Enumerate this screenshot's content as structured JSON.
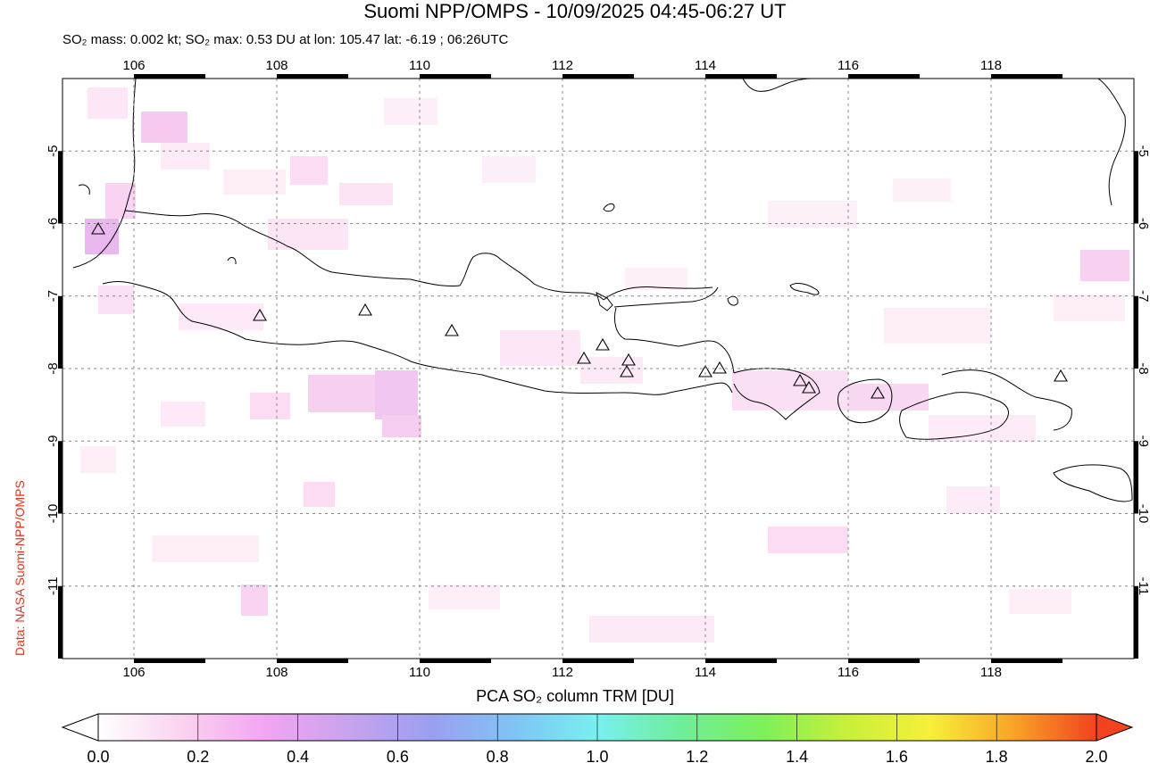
{
  "title": "Suomi NPP/OMPS - 10/09/2025 04:45-06:27 UT",
  "subtitle": "SO₂ mass: 0.002 kt; SO₂ max: 0.53 DU at lon: 105.47 lat: -6.19 ; 06:26UTC",
  "credit": "Data: NASA Suomi-NPP/OMPS",
  "colorbar_title": "PCA SO₂ column TRM [DU]",
  "map": {
    "lon_range": [
      105.0,
      120.0
    ],
    "lat_range": [
      -12.0,
      -4.0
    ],
    "lon_ticks": [
      "106",
      "108",
      "110",
      "112",
      "114",
      "116",
      "118"
    ],
    "lat_ticks": [
      "-5",
      "-6",
      "-7",
      "-8",
      "-9",
      "-10",
      "-11"
    ],
    "grid": "dashed",
    "volcano_marker": "triangle-icon"
  },
  "colorbar": {
    "ticks": [
      "0.0",
      "0.2",
      "0.4",
      "0.6",
      "0.8",
      "1.0",
      "1.2",
      "1.4",
      "1.6",
      "1.8",
      "2.0"
    ],
    "colors": [
      "#ffffff",
      "#fbd3f0",
      "#f2a6f2",
      "#c9a3ee",
      "#9b9ff0",
      "#7fc4f4",
      "#78f0f0",
      "#6fee9a",
      "#7ef05a",
      "#c9f03a",
      "#f7f03a",
      "#f9a427",
      "#f2421e"
    ]
  }
}
